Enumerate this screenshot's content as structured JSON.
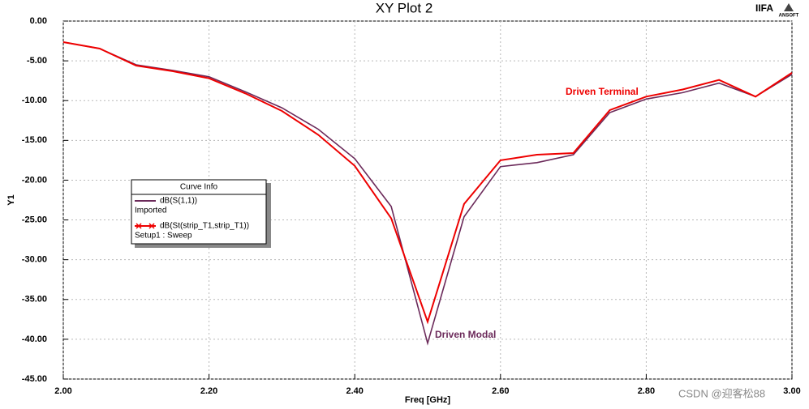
{
  "chart_data": {
    "type": "line",
    "title": "XY Plot 2",
    "brand": "IIFA",
    "logo": "ANSOFT",
    "x_label": "Freq [GHz]",
    "y_label": "Y1",
    "legend_title": "Curve Info",
    "x": [
      2.0,
      2.05,
      2.1,
      2.15,
      2.2,
      2.25,
      2.3,
      2.35,
      2.4,
      2.45,
      2.5,
      2.55,
      2.6,
      2.65,
      2.7,
      2.75,
      2.8,
      2.85,
      2.9,
      2.95,
      3.0
    ],
    "series": [
      {
        "name": "dB(S(1,1))",
        "source": "Imported",
        "color": "#6b2a5a",
        "values": [
          -2.65,
          -3.46,
          -5.5,
          -6.2,
          -7.0,
          -8.9,
          -10.9,
          -13.6,
          -17.3,
          -23.3,
          -40.5,
          -24.6,
          -18.3,
          -17.8,
          -16.8,
          -11.5,
          -9.8,
          -9.0,
          -7.8,
          -9.5,
          -6.7
        ]
      },
      {
        "name": "dB(St(strip_T1,strip_T1))",
        "source": "Setup1 : Sweep",
        "color": "#ee0000",
        "values": [
          -2.65,
          -3.46,
          -5.6,
          -6.3,
          -7.2,
          -9.1,
          -11.3,
          -14.3,
          -18.2,
          -24.8,
          -37.8,
          -23.0,
          -17.5,
          -16.8,
          -16.6,
          -11.2,
          -9.5,
          -8.6,
          -7.4,
          -9.5,
          -6.5
        ]
      }
    ],
    "annotations": [
      "Driven Terminal",
      "Driven Modal"
    ],
    "watermark": "CSDN @迎客松88",
    "xlim": [
      2.0,
      3.0
    ],
    "ylim": [
      -45,
      0
    ],
    "xticks": [
      {
        "value": 2.0,
        "label": "2.00"
      },
      {
        "value": 2.2,
        "label": "2.20"
      },
      {
        "value": 2.4,
        "label": "2.40"
      },
      {
        "value": 2.6,
        "label": "2.60"
      },
      {
        "value": 2.8,
        "label": "2.80"
      },
      {
        "value": 3.0,
        "label": "3.00"
      }
    ],
    "yticks": [
      {
        "value": 0,
        "label": "0.00"
      },
      {
        "value": -5,
        "label": "-5.00"
      },
      {
        "value": -10,
        "label": "-10.00"
      },
      {
        "value": -15,
        "label": "-15.00"
      },
      {
        "value": -20,
        "label": "-20.00"
      },
      {
        "value": -25,
        "label": "-25.00"
      },
      {
        "value": -30,
        "label": "-30.00"
      },
      {
        "value": -35,
        "label": "-35.00"
      },
      {
        "value": -40,
        "label": "-40.00"
      },
      {
        "value": -45,
        "label": "-45.00"
      }
    ],
    "grid": true
  }
}
